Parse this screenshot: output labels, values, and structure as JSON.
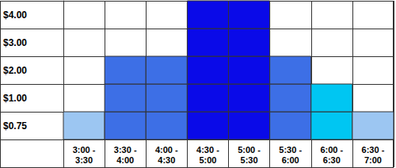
{
  "chart_data": {
    "type": "bar",
    "categories": [
      "3:00 - 3:30",
      "3:30 - 4:00",
      "4:00 - 4:30",
      "4:30 - 5:00",
      "5:00 - 5:30",
      "5:30 - 6:00",
      "6:00 - 6:30",
      "6:30 - 7:00"
    ],
    "values": [
      0.75,
      2,
      2,
      4,
      4,
      2,
      1,
      0.75
    ],
    "colors": [
      "#9cc6f2",
      "#3d6fe6",
      "#3d6fe6",
      "#0a0ae8",
      "#0a0ae8",
      "#3d6fe6",
      "#00c6f2",
      "#9cc6f2"
    ],
    "yticks": [
      {
        "value": 0.75,
        "label": "$0.75"
      },
      {
        "value": 1,
        "label": "$1.00"
      },
      {
        "value": 2,
        "label": "$2.00"
      },
      {
        "value": 3,
        "label": "$3.00"
      },
      {
        "value": 4,
        "label": "$4.00"
      }
    ],
    "grid": true
  }
}
